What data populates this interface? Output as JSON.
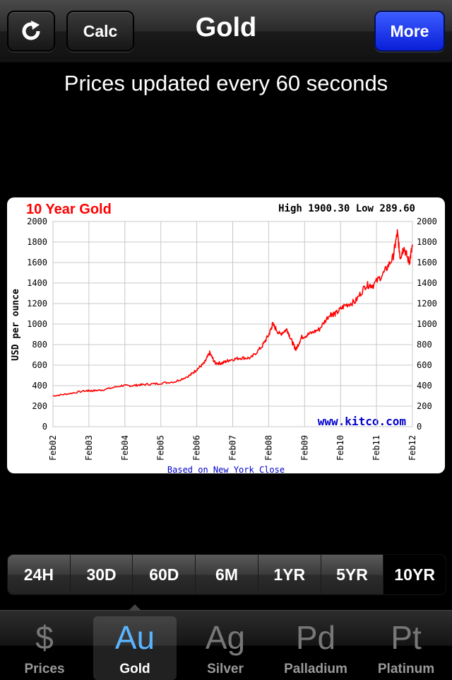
{
  "navbar": {
    "refresh_icon": "refresh-icon",
    "calc_label": "Calc",
    "title": "Gold",
    "more_label": "More"
  },
  "subtitle": "Prices updated every 60 seconds",
  "chart_data": {
    "type": "line",
    "title": "10 Year Gold",
    "high_low": "High 1900.30 Low 289.60",
    "ylabel": "USD per ounce",
    "footnote": "Based on New York Close",
    "watermark": "www.kitco.com",
    "ylim": [
      0,
      2000
    ],
    "yticks": [
      0,
      200,
      400,
      600,
      800,
      1000,
      1200,
      1400,
      1600,
      1800,
      2000
    ],
    "categories": [
      "Feb02",
      "Feb03",
      "Feb04",
      "Feb05",
      "Feb06",
      "Feb07",
      "Feb08",
      "Feb09",
      "Feb10",
      "Feb11",
      "Feb12"
    ],
    "grid": true,
    "series": [
      {
        "color": "#ff0000",
        "x": [
          2002.09,
          2002.5,
          2003.0,
          2003.2,
          2003.5,
          2004.0,
          2004.3,
          2004.6,
          2005.0,
          2005.5,
          2005.9,
          2006.1,
          2006.3,
          2006.45,
          2006.6,
          2006.8,
          2007.0,
          2007.3,
          2007.6,
          2007.9,
          2008.1,
          2008.2,
          2008.4,
          2008.6,
          2008.75,
          2008.85,
          2009.0,
          2009.2,
          2009.5,
          2009.8,
          2009.95,
          2010.2,
          2010.5,
          2010.8,
          2011.0,
          2011.3,
          2011.55,
          2011.67,
          2011.75,
          2011.85,
          2012.0,
          2012.09
        ],
        "y": [
          300,
          320,
          350,
          350,
          360,
          400,
          400,
          410,
          420,
          440,
          500,
          560,
          620,
          720,
          620,
          620,
          650,
          670,
          670,
          780,
          900,
          1000,
          900,
          950,
          820,
          750,
          870,
          900,
          950,
          1100,
          1100,
          1180,
          1220,
          1380,
          1380,
          1500,
          1650,
          1890,
          1650,
          1750,
          1600,
          1760
        ]
      }
    ]
  },
  "range_tabs": [
    "24H",
    "30D",
    "60D",
    "6M",
    "1YR",
    "5YR",
    "10YR"
  ],
  "range_active": "10YR",
  "tabs": [
    {
      "glyph": "$",
      "label": "Prices"
    },
    {
      "glyph": "Au",
      "label": "Gold"
    },
    {
      "glyph": "Ag",
      "label": "Silver"
    },
    {
      "glyph": "Pd",
      "label": "Palladium"
    },
    {
      "glyph": "Pt",
      "label": "Platinum"
    }
  ],
  "active_tab": "Gold"
}
